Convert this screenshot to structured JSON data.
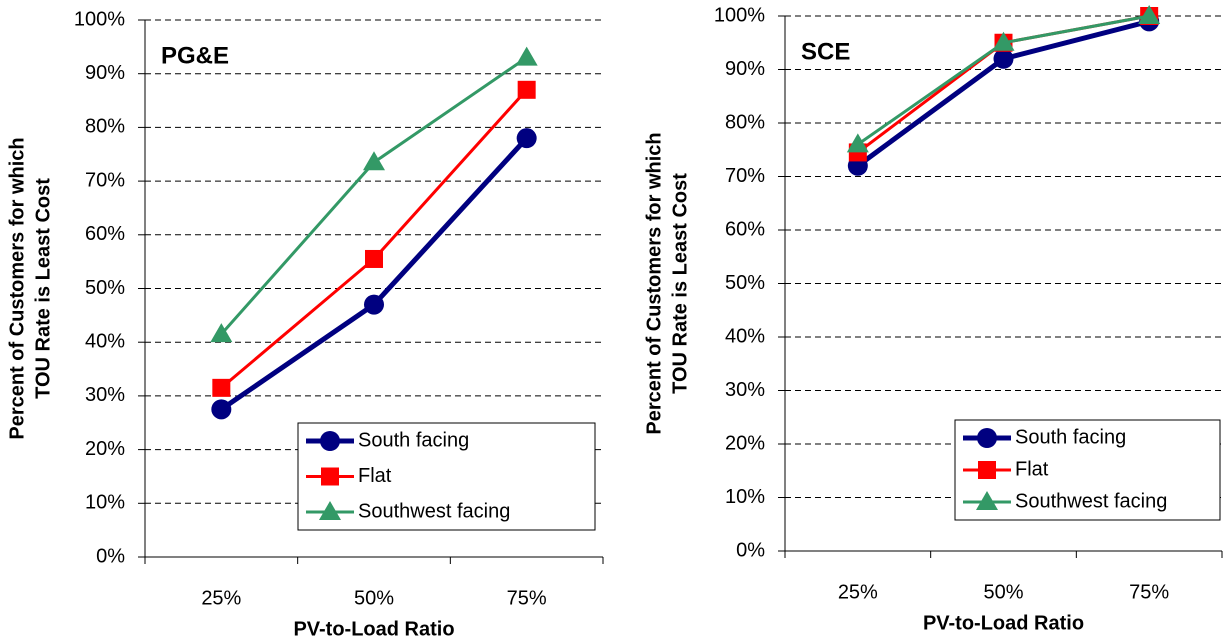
{
  "chart_data": [
    {
      "type": "line",
      "annotation": "PG&E",
      "xlabel": "PV-to-Load Ratio",
      "ylabel": [
        "Percent of Customers for which",
        "TOU Rate is Least Cost"
      ],
      "categories": [
        "25%",
        "50%",
        "75%"
      ],
      "series": [
        {
          "name": "South facing",
          "color": "#000080",
          "marker": "circle",
          "values": [
            27.5,
            47,
            78
          ]
        },
        {
          "name": "Flat",
          "color": "#ff0000",
          "marker": "square",
          "values": [
            31.5,
            55.5,
            87
          ]
        },
        {
          "name": "Southwest facing",
          "color": "#339966",
          "marker": "triangle",
          "values": [
            41.5,
            73.5,
            93
          ]
        }
      ],
      "ylim": [
        0,
        100
      ],
      "yticks": [
        {
          "value": 0,
          "label": "0%"
        },
        {
          "value": 10,
          "label": "10%"
        },
        {
          "value": 20,
          "label": "20%"
        },
        {
          "value": 30,
          "label": "30%"
        },
        {
          "value": 40,
          "label": "40%"
        },
        {
          "value": 50,
          "label": "50%"
        },
        {
          "value": 60,
          "label": "60%"
        },
        {
          "value": 70,
          "label": "70%"
        },
        {
          "value": 80,
          "label": "80%"
        },
        {
          "value": 90,
          "label": "90%"
        },
        {
          "value": 100,
          "label": "100%"
        }
      ],
      "grid": true,
      "legend": "lower right"
    },
    {
      "type": "line",
      "annotation": "SCE",
      "xlabel": "PV-to-Load Ratio",
      "ylabel": [
        "Percent of Customers for which",
        "TOU Rate is Least Cost"
      ],
      "categories": [
        "25%",
        "50%",
        "75%"
      ],
      "series": [
        {
          "name": "South facing",
          "color": "#000080",
          "marker": "circle",
          "values": [
            72,
            92,
            99
          ]
        },
        {
          "name": "Flat",
          "color": "#ff0000",
          "marker": "square",
          "values": [
            74.5,
            95,
            100
          ]
        },
        {
          "name": "Southwest facing",
          "color": "#339966",
          "marker": "triangle",
          "values": [
            76,
            95,
            100
          ]
        }
      ],
      "ylim": [
        0,
        100
      ],
      "yticks": [
        {
          "value": 0,
          "label": "0%"
        },
        {
          "value": 10,
          "label": "10%"
        },
        {
          "value": 20,
          "label": "20%"
        },
        {
          "value": 30,
          "label": "30%"
        },
        {
          "value": 40,
          "label": "40%"
        },
        {
          "value": 50,
          "label": "50%"
        },
        {
          "value": 60,
          "label": "60%"
        },
        {
          "value": 70,
          "label": "70%"
        },
        {
          "value": 80,
          "label": "80%"
        },
        {
          "value": 90,
          "label": "90%"
        },
        {
          "value": 100,
          "label": "100%"
        }
      ],
      "grid": true,
      "legend": "lower right"
    }
  ]
}
